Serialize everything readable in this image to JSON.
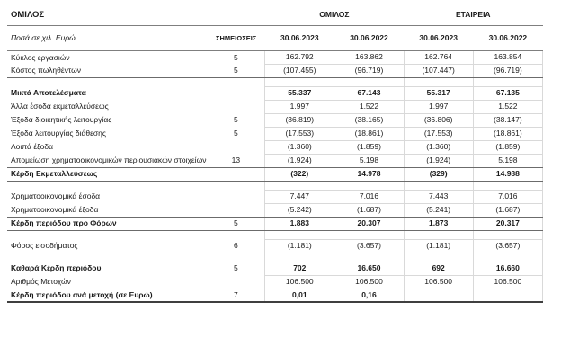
{
  "title": "ΟΜΙΛΟΣ",
  "table": {
    "group_headers": [
      "ΟΜΙΛΟΣ",
      "ΕΤΑΙΡΕΙΑ"
    ],
    "amounts_note": "Ποσά σε χιλ. Ευρώ",
    "notes_header": "ΣΗΜΕΙΩΣΕΙΣ",
    "date_headers": [
      "30.06.2023",
      "30.06.2022",
      "30.06.2023",
      "30.06.2022"
    ],
    "rows": [
      {
        "label": "Κύκλος εργασιών",
        "note": "5",
        "values": [
          "162.792",
          "163.862",
          "162.764",
          "163.854"
        ],
        "bold": false,
        "rule": false,
        "spacer": false
      },
      {
        "label": "Κόστος πωληθέντων",
        "note": "5",
        "values": [
          "(107.455)",
          "(96.719)",
          "(107.447)",
          "(96.719)"
        ],
        "bold": false,
        "rule": true,
        "spacer": false
      },
      {
        "label": "",
        "note": "",
        "values": [
          "",
          "",
          "",
          ""
        ],
        "bold": false,
        "rule": false,
        "spacer": true
      },
      {
        "label": "Μικτά Αποτελέσματα",
        "note": "",
        "values": [
          "55.337",
          "67.143",
          "55.317",
          "67.135"
        ],
        "bold": true,
        "rule": false,
        "spacer": false
      },
      {
        "label": "Άλλα έσοδα εκμεταλλεύσεως",
        "note": "",
        "values": [
          "1.997",
          "1.522",
          "1.997",
          "1.522"
        ],
        "bold": false,
        "rule": false,
        "spacer": false
      },
      {
        "label": "Έξοδα διοικητικής λειτουργίας",
        "note": "5",
        "values": [
          "(36.819)",
          "(38.165)",
          "(36.806)",
          "(38.147)"
        ],
        "bold": false,
        "rule": false,
        "spacer": false
      },
      {
        "label": "Έξοδα λειτουργίας διάθεσης",
        "note": "5",
        "values": [
          "(17.553)",
          "(18.861)",
          "(17.553)",
          "(18.861)"
        ],
        "bold": false,
        "rule": false,
        "spacer": false
      },
      {
        "label": "Λοιπά έξοδα",
        "note": "",
        "values": [
          "(1.360)",
          "(1.859)",
          "(1.360)",
          "(1.859)"
        ],
        "bold": false,
        "rule": false,
        "spacer": false
      },
      {
        "label": "Απομείωση χρηματοοικονομικών περιουσιακών στοιχείων",
        "note": "13",
        "values": [
          "(1.924)",
          "5.198",
          "(1.924)",
          "5.198"
        ],
        "bold": false,
        "rule": true,
        "spacer": false
      },
      {
        "label": "Κέρδη Εκμεταλλεύσεως",
        "note": "",
        "values": [
          "(322)",
          "14.978",
          "(329)",
          "14.988"
        ],
        "bold": true,
        "rule": true,
        "spacer": false
      },
      {
        "label": "",
        "note": "",
        "values": [
          "",
          "",
          "",
          ""
        ],
        "bold": false,
        "rule": false,
        "spacer": true
      },
      {
        "label": "Χρηματοοικονομικά έσοδα",
        "note": "",
        "values": [
          "7.447",
          "7.016",
          "7.443",
          "7.016"
        ],
        "bold": false,
        "rule": false,
        "spacer": false
      },
      {
        "label": "Χρηματοοικονομικά έξοδα",
        "note": "",
        "values": [
          "(5.242)",
          "(1.687)",
          "(5.241)",
          "(1.687)"
        ],
        "bold": false,
        "rule": true,
        "spacer": false
      },
      {
        "label": "Κέρδη περιόδου προ Φόρων",
        "note": "5",
        "values": [
          "1.883",
          "20.307",
          "1.873",
          "20.317"
        ],
        "bold": true,
        "rule": true,
        "spacer": false
      },
      {
        "label": "",
        "note": "",
        "values": [
          "",
          "",
          "",
          ""
        ],
        "bold": false,
        "rule": false,
        "spacer": true
      },
      {
        "label": "Φόρος εισοδήματος",
        "note": "6",
        "values": [
          "(1.181)",
          "(3.657)",
          "(1.181)",
          "(3.657)"
        ],
        "bold": false,
        "rule": true,
        "spacer": false
      },
      {
        "label": "",
        "note": "",
        "values": [
          "",
          "",
          "",
          ""
        ],
        "bold": false,
        "rule": false,
        "spacer": true
      },
      {
        "label": "Καθαρά Κέρδη περιόδου",
        "note": "5",
        "values": [
          "702",
          "16.650",
          "692",
          "16.660"
        ],
        "bold": true,
        "rule": false,
        "spacer": false
      },
      {
        "label": "Αριθμός Μετοχών",
        "note": "",
        "values": [
          "106.500",
          "106.500",
          "106.500",
          "106.500"
        ],
        "bold": false,
        "rule": true,
        "spacer": false
      },
      {
        "label": "Κέρδη περιόδου ανά μετοχή (σε Ευρώ)",
        "note": "7",
        "values": [
          "0,01",
          "0,16",
          "",
          ""
        ],
        "bold": true,
        "rule": false,
        "spacer": false,
        "thick": true
      }
    ]
  }
}
